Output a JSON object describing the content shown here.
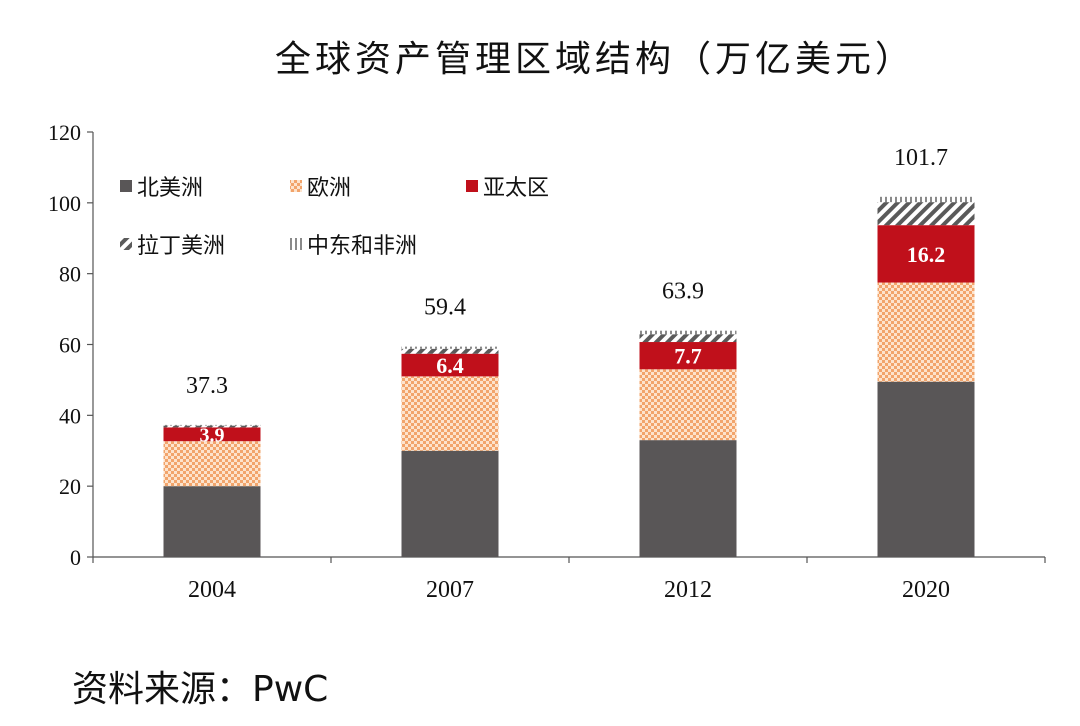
{
  "title": "全球资产管理区域结构（万亿美元）",
  "source": "资料来源：PwC",
  "colors": {
    "north_america": "#595657",
    "europe_dot": "#f2a46b",
    "asia_pacific": "#c0101b",
    "latin_america_stripe": "#5a5a5a",
    "mea_stripe": "#8a8a8a"
  },
  "chart_data": {
    "type": "bar",
    "stacked": true,
    "categories": [
      "2004",
      "2007",
      "2012",
      "2020"
    ],
    "ylim": [
      0,
      120
    ],
    "yticks": [
      0,
      20,
      40,
      60,
      80,
      100,
      120
    ],
    "grid": false,
    "legend_position": "top-left",
    "series": [
      {
        "name": "北美洲",
        "key": "north_america",
        "values": [
          20.0,
          30.0,
          33.0,
          49.5
        ]
      },
      {
        "name": "欧洲",
        "key": "europe",
        "values": [
          12.7,
          21.0,
          20.0,
          28.0
        ]
      },
      {
        "name": "亚太区",
        "key": "asia_pacific",
        "values": [
          3.9,
          6.4,
          7.7,
          16.2
        ],
        "labels": [
          "3.9",
          "6.4",
          "7.7",
          "16.2"
        ]
      },
      {
        "name": "拉丁美洲",
        "key": "latin_america",
        "values": [
          0.5,
          1.4,
          2.2,
          6.5
        ]
      },
      {
        "name": "中东和非洲",
        "key": "mea",
        "values": [
          0.2,
          0.6,
          1.0,
          1.5
        ]
      }
    ],
    "totals": [
      "37.3",
      "59.4",
      "63.9",
      "101.7"
    ]
  }
}
